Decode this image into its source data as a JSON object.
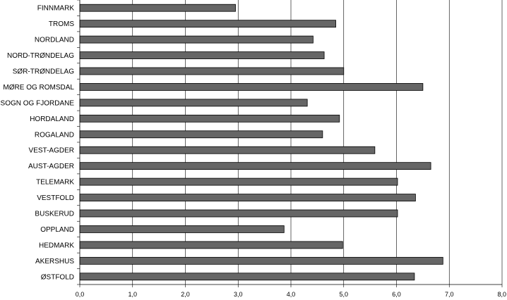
{
  "chart_data": {
    "type": "bar",
    "orientation": "horizontal",
    "title": "",
    "xlabel": "",
    "ylabel": "",
    "categories": [
      "FINNMARK",
      "TROMS",
      "NORDLAND",
      "NORD-TRØNDELAG",
      "SØR-TRØNDELAG",
      "MØRE OG ROMSDAL",
      "SOGN OG FJORDANE",
      "HORDALAND",
      "ROGALAND",
      "VEST-AGDER",
      "AUST-AGDER",
      "TELEMARK",
      "VESTFOLD",
      "BUSKERUD",
      "OPPLAND",
      "HEDMARK",
      "AKERSHUS",
      "ØSTFOLD"
    ],
    "values": [
      2.95,
      4.85,
      4.42,
      4.63,
      5.0,
      6.5,
      4.31,
      4.92,
      4.6,
      5.59,
      6.65,
      6.02,
      6.36,
      6.02,
      3.87,
      4.98,
      6.88,
      6.34
    ],
    "xlim": [
      0,
      8
    ],
    "xticks": [
      "0,0",
      "1,0",
      "2,0",
      "3,0",
      "4,0",
      "5,0",
      "6,0",
      "7,0",
      "8,0"
    ],
    "grid": "vertical",
    "legend": "none",
    "bar_color": "#666666",
    "bar_stroke": "#000000"
  }
}
